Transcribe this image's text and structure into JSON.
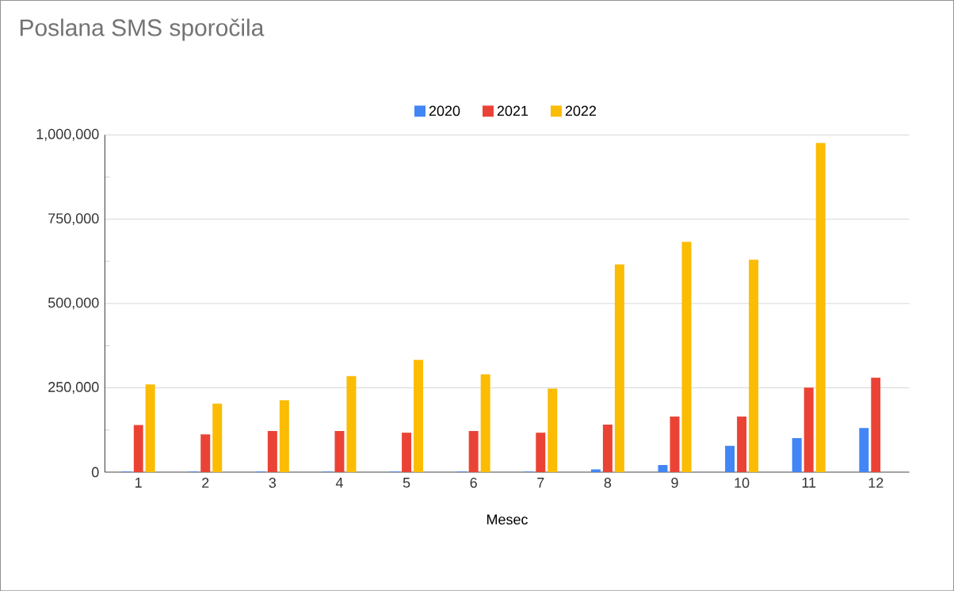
{
  "chart_data": {
    "type": "bar",
    "title": "Poslana SMS sporočila",
    "xlabel": "Mesec",
    "categories": [
      "1",
      "2",
      "3",
      "4",
      "5",
      "6",
      "7",
      "8",
      "9",
      "10",
      "11",
      "12"
    ],
    "series": [
      {
        "name": "2020",
        "color": "#4285f4",
        "values": [
          2000,
          2000,
          2000,
          2000,
          2000,
          2000,
          2000,
          8000,
          21000,
          78000,
          101000,
          131000
        ]
      },
      {
        "name": "2021",
        "color": "#ea4335",
        "values": [
          140000,
          112000,
          122000,
          122000,
          117000,
          122000,
          117000,
          141000,
          165000,
          165000,
          251000,
          280000
        ]
      },
      {
        "name": "2022",
        "color": "#fbbc04",
        "values": [
          260000,
          203000,
          213000,
          285000,
          333000,
          290000,
          248000,
          616000,
          683000,
          630000,
          976000,
          null
        ]
      }
    ],
    "ylim": [
      0,
      1000000
    ],
    "yticks": [
      {
        "value": 0,
        "label": "0"
      },
      {
        "value": 250000,
        "label": "250,000"
      },
      {
        "value": 500000,
        "label": "500,000"
      },
      {
        "value": 750000,
        "label": "750,000"
      },
      {
        "value": 1000000,
        "label": "1,000,000"
      }
    ],
    "grid": "y",
    "legend": "top"
  }
}
